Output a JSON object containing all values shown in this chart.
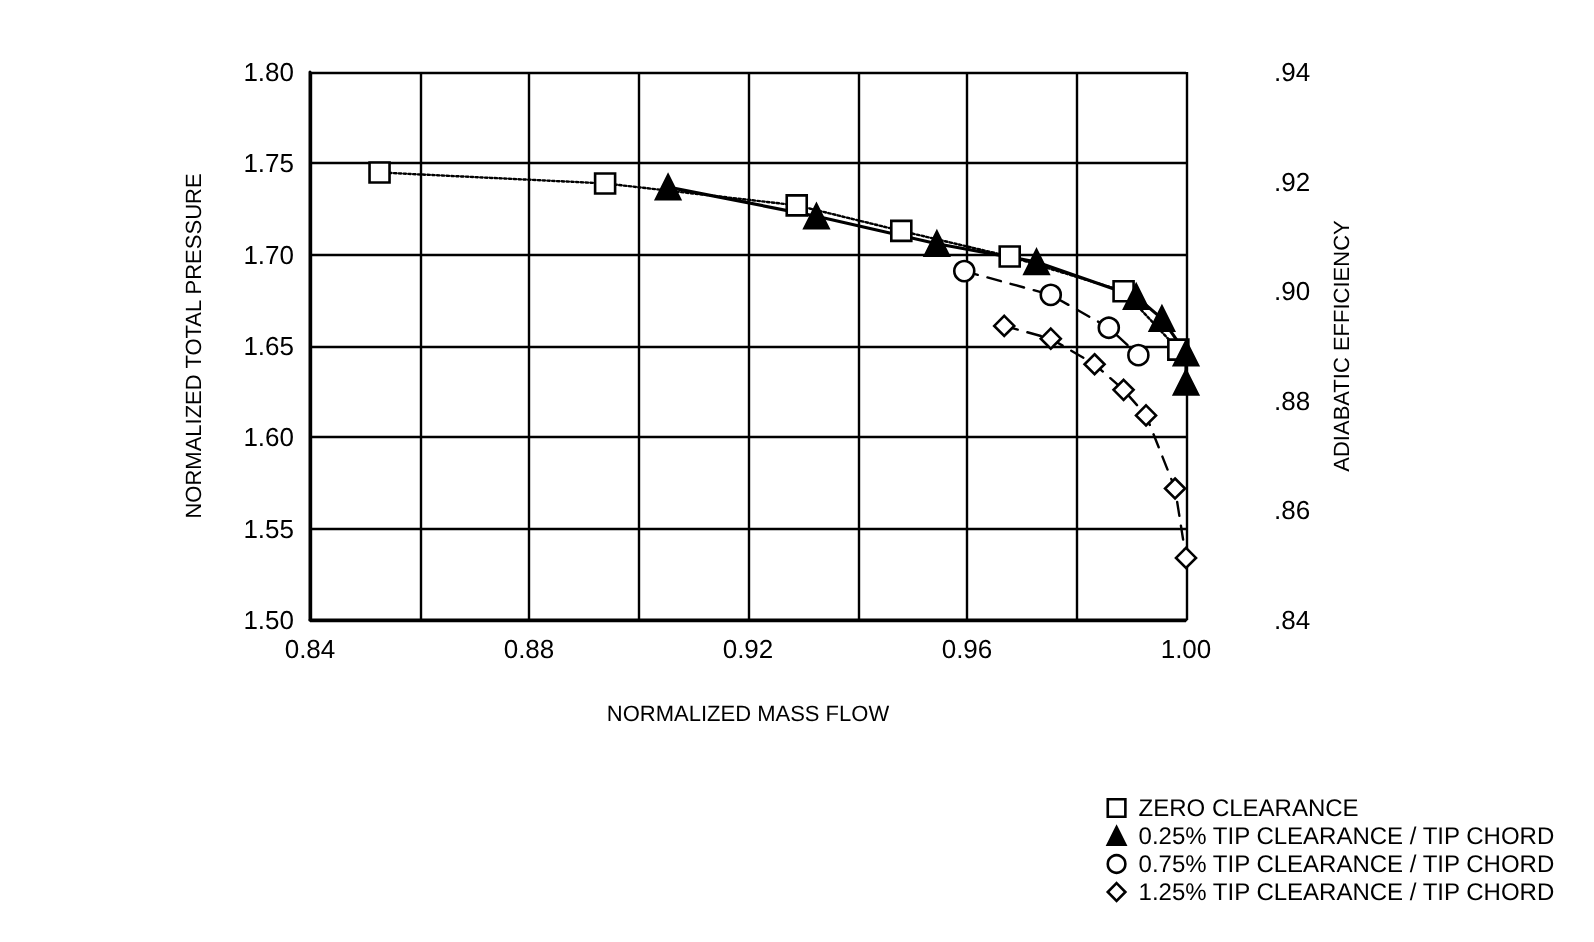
{
  "chart_data": {
    "type": "line",
    "xlabel": "NORMALIZED MASS FLOW",
    "ylabel": "NORMALIZED TOTAL PRESSURE",
    "y2label": "ADIABATIC EFFICIENCY",
    "xlim": [
      0.84,
      1.0
    ],
    "xticks": [
      {
        "value": 0.84,
        "label": "0.84"
      },
      {
        "value": 0.86,
        "label": null
      },
      {
        "value": 0.88,
        "label": "0.88"
      },
      {
        "value": 0.9,
        "label": null
      },
      {
        "value": 0.92,
        "label": "0.92"
      },
      {
        "value": 0.94,
        "label": null
      },
      {
        "value": 0.96,
        "label": "0.96"
      },
      {
        "value": 0.98,
        "label": null
      },
      {
        "value": 1.0,
        "label": "1.00"
      }
    ],
    "ylim": [
      1.5,
      1.8
    ],
    "yticks": [
      {
        "value": 1.5,
        "label": "1.50"
      },
      {
        "value": 1.55,
        "label": "1.55"
      },
      {
        "value": 1.6,
        "label": "1.60"
      },
      {
        "value": 1.65,
        "label": "1.65"
      },
      {
        "value": 1.7,
        "label": "1.70"
      },
      {
        "value": 1.75,
        "label": "1.75"
      },
      {
        "value": 1.8,
        "label": "1.80"
      }
    ],
    "y2lim": [
      0.84,
      0.94
    ],
    "y2ticks": [
      {
        "value": 0.84,
        "label": ".84"
      },
      {
        "value": 0.86,
        "label": ".86"
      },
      {
        "value": 0.88,
        "label": ".88"
      },
      {
        "value": 0.9,
        "label": ".90"
      },
      {
        "value": 0.92,
        "label": ".92"
      },
      {
        "value": 0.94,
        "label": ".94"
      }
    ],
    "grid": true,
    "legend": "bottom right",
    "series": [
      {
        "name": "ZERO CLEARANCE",
        "color": "#000000",
        "marker": "square",
        "line_style": "dotted",
        "x": [
          0.8527,
          0.8939,
          0.9289,
          0.948,
          0.9678,
          0.9886,
          0.9986
        ],
        "values": [
          1.745,
          1.739,
          1.727,
          1.713,
          1.699,
          1.68,
          1.648
        ]
      },
      {
        "name": "0.25% TIP CLEARANCE / TIP CHORD",
        "color": "#000000",
        "marker": "triangle",
        "line_style": "solid",
        "x": [
          0.9054,
          0.9325,
          0.9545,
          0.9727,
          0.9909,
          0.9956,
          1.0,
          1.0
        ],
        "values": [
          1.737,
          1.721,
          1.706,
          1.696,
          1.677,
          1.665,
          1.646,
          1.63
        ]
      },
      {
        "name": "0.75% TIP CLEARANCE / TIP CHORD",
        "color": "#000000",
        "marker": "circle",
        "line_style": "dashed",
        "x": [
          0.9595,
          0.9753,
          0.9859,
          0.9913
        ],
        "values": [
          1.691,
          1.678,
          1.66,
          1.645
        ]
      },
      {
        "name": "1.25% TIP CLEARANCE / TIP CHORD",
        "color": "#000000",
        "marker": "diamond",
        "line_style": "dashed",
        "x": [
          0.9668,
          0.9753,
          0.9833,
          0.9886,
          0.9927,
          0.998,
          1.0
        ],
        "values": [
          1.661,
          1.654,
          1.64,
          1.626,
          1.612,
          1.572,
          1.534
        ]
      }
    ]
  }
}
